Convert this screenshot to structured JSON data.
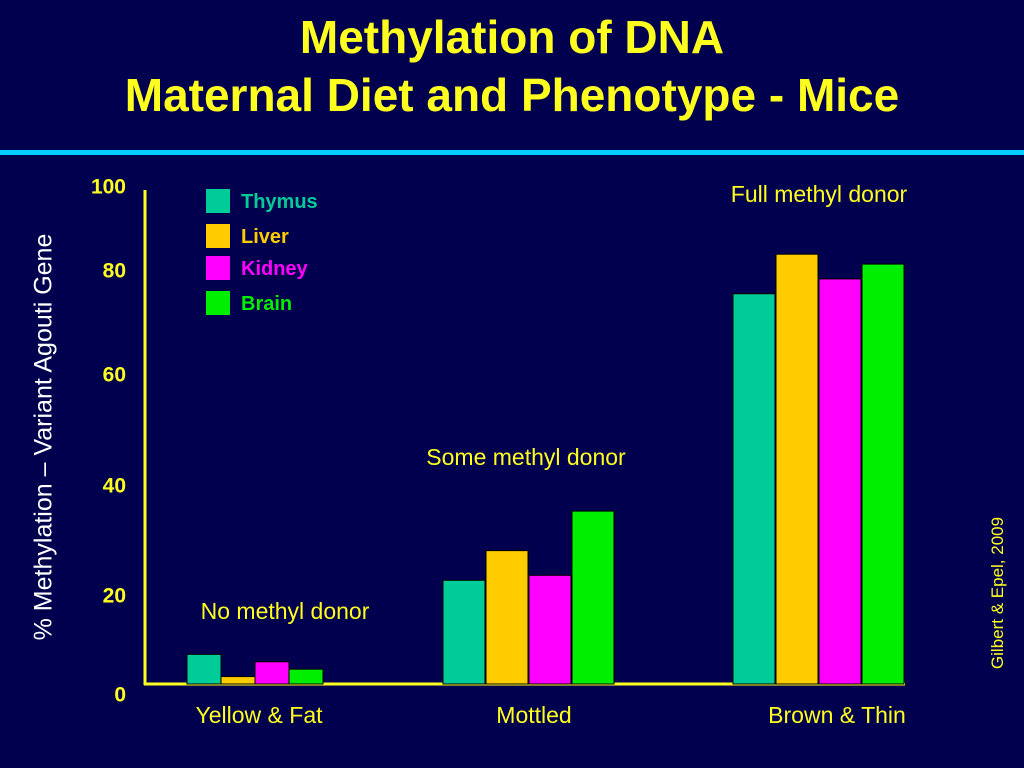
{
  "title_line1": "Methylation of DNA",
  "title_line2": "Maternal Diet and Phenotype - Mice",
  "credit": "Gilbert & Epel, 2009",
  "colors": {
    "background": "#00004e",
    "title": "#ffff1f",
    "rule": "#00ccff",
    "axis": "#ffff1f",
    "text": "#ffffff"
  },
  "chart_data": {
    "type": "bar",
    "ylabel": "% Methylation – Variant Agouti Gene",
    "ylim": [
      0,
      100
    ],
    "yticks": [
      "0",
      "20",
      "40",
      "60",
      "80",
      "100"
    ],
    "ytick_values": [
      0,
      20,
      40,
      60,
      80,
      100
    ],
    "grid": false,
    "legend_position": "top-left",
    "categories": [
      "Yellow & Fat",
      "Mottled",
      "Brown & Thin"
    ],
    "annotations": [
      "No methyl donor",
      "Some methyl donor",
      "Full methyl donor"
    ],
    "series": [
      {
        "name": "Thymus",
        "color": "#00cc99",
        "values": [
          6,
          21,
          79
        ]
      },
      {
        "name": "Liver",
        "color": "#ffcc00",
        "values": [
          1.5,
          27,
          87
        ]
      },
      {
        "name": "Kidney",
        "color": "#ff00ff",
        "values": [
          4.5,
          22,
          82
        ]
      },
      {
        "name": "Brain",
        "color": "#00ee00",
        "values": [
          3,
          35,
          85
        ]
      }
    ]
  }
}
